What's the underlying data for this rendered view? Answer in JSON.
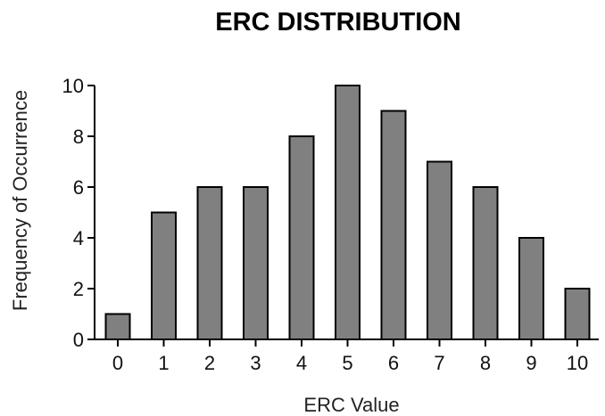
{
  "chart_data": {
    "type": "bar",
    "title": "ERC DISTRIBUTION",
    "xlabel": "ERC Value",
    "ylabel": "Frequency of Occurrence",
    "categories": [
      "0",
      "1",
      "2",
      "3",
      "4",
      "5",
      "6",
      "7",
      "8",
      "9",
      "10"
    ],
    "values": [
      1,
      5,
      6,
      6,
      8,
      10,
      9,
      7,
      6,
      4,
      2
    ],
    "ylim": [
      0,
      10
    ],
    "yticks": [
      "0",
      "2",
      "4",
      "6",
      "8",
      "10"
    ],
    "grid": false,
    "bar_color": "#808080"
  }
}
